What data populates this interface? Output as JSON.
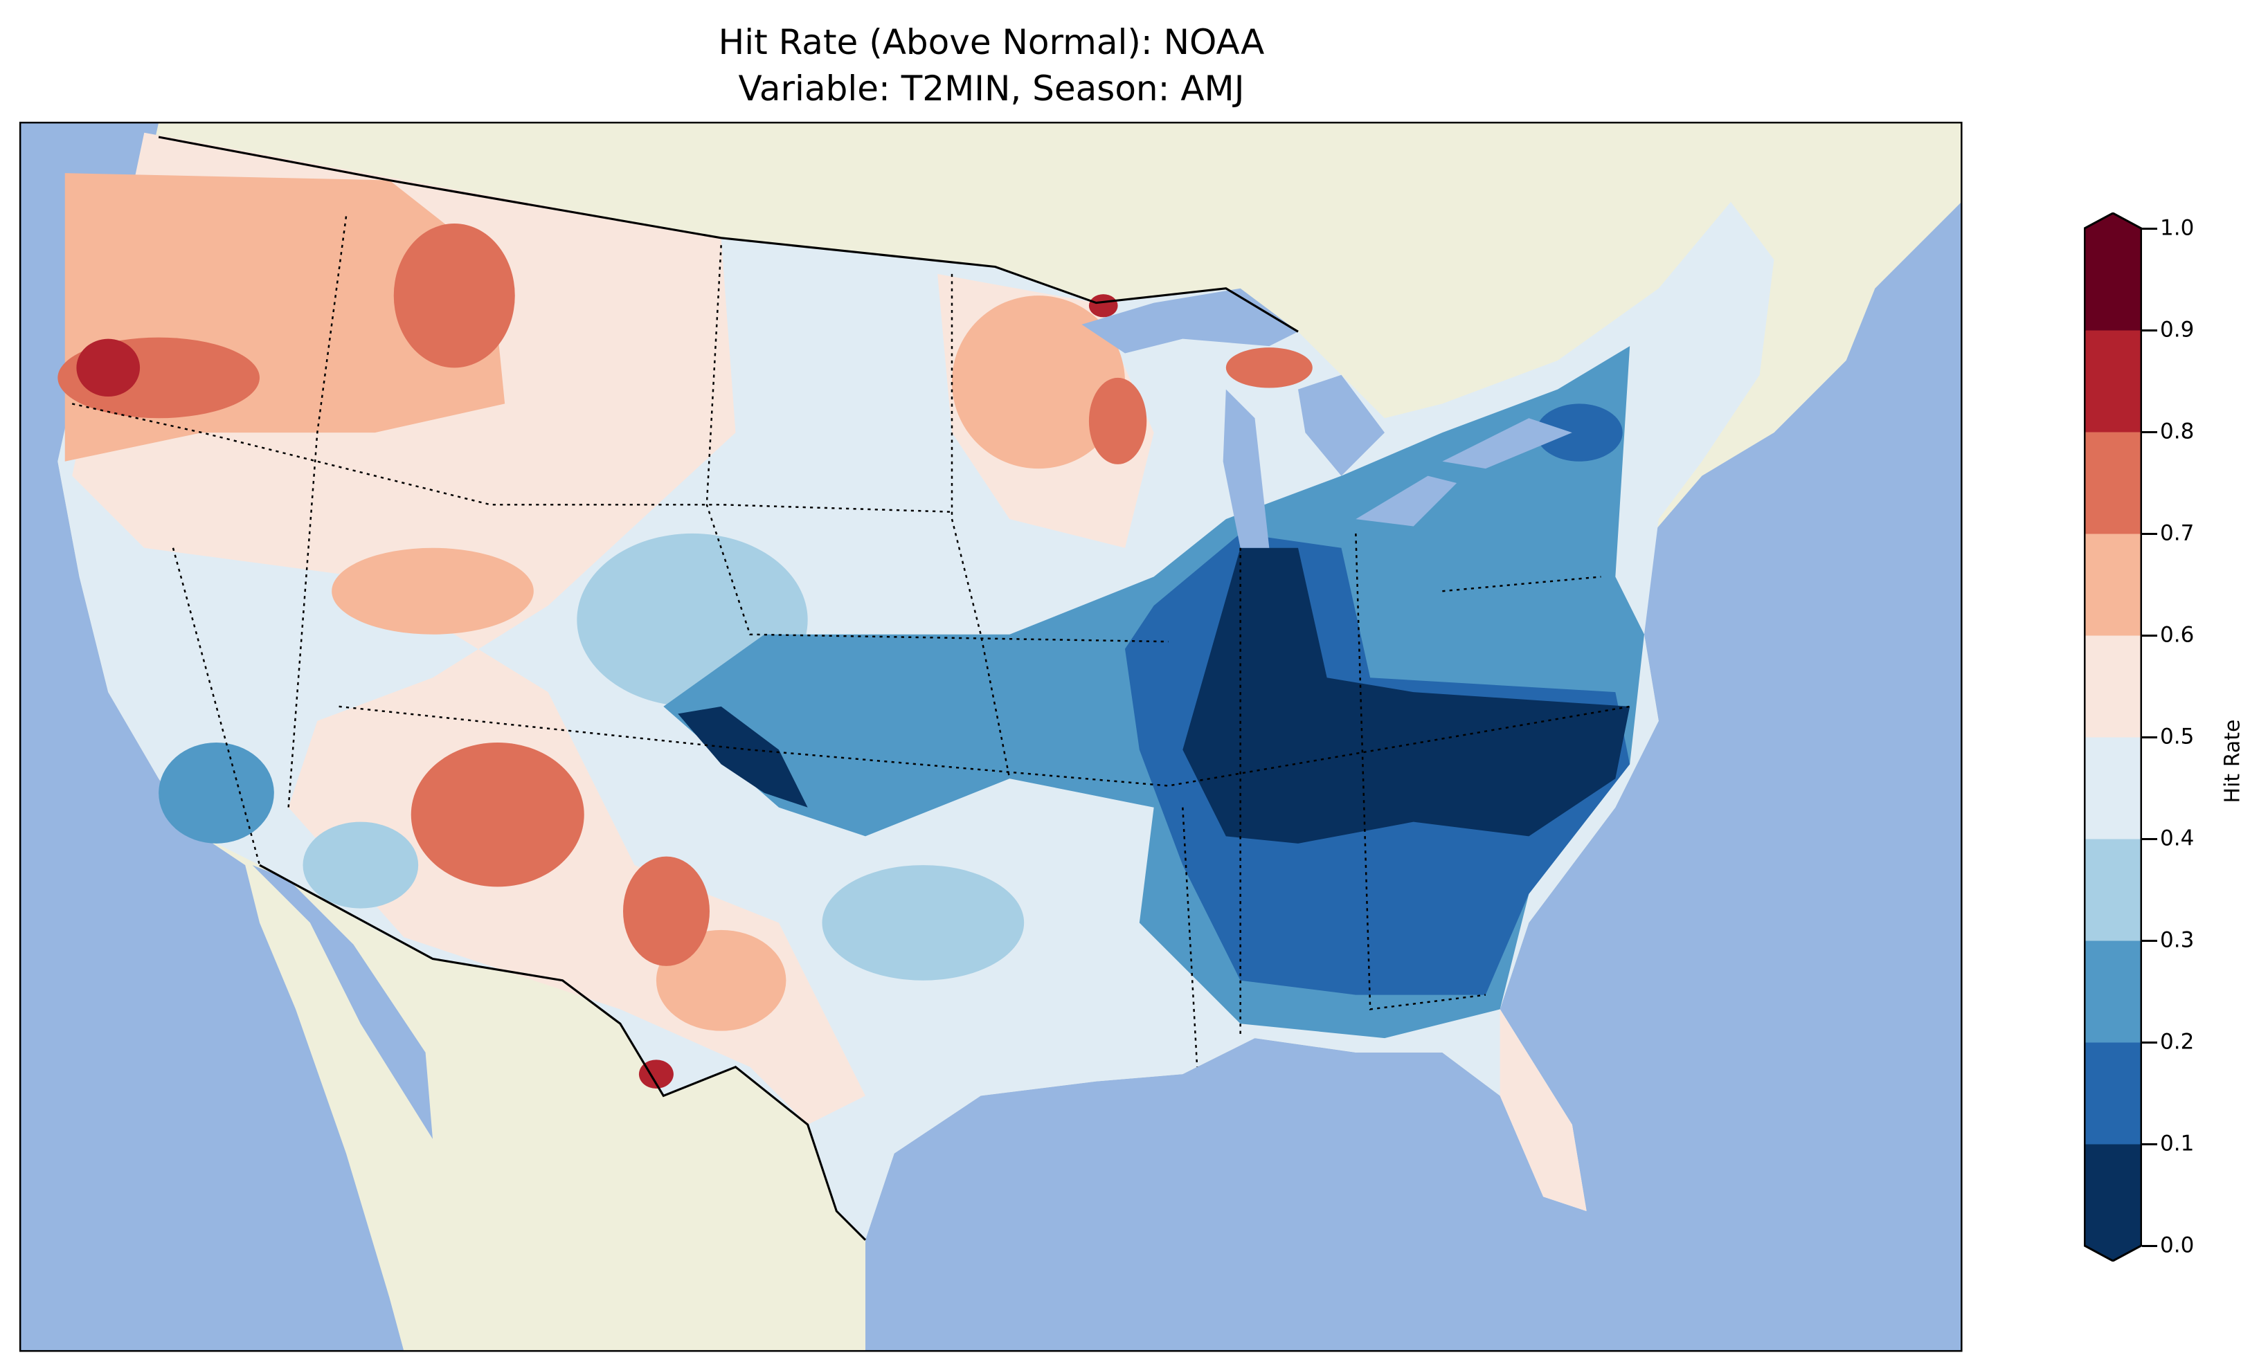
{
  "title": {
    "line1": "Hit Rate (Above Normal): NOAA",
    "line2": "Variable: T2MIN, Season: AMJ"
  },
  "colorbar": {
    "label": "Hit Rate",
    "ticks": [
      "0.0",
      "0.1",
      "0.2",
      "0.3",
      "0.4",
      "0.5",
      "0.6",
      "0.7",
      "0.8",
      "0.9",
      "1.0"
    ],
    "colors": [
      "#08305e",
      "#2567ad",
      "#5199c6",
      "#a7cfe4",
      "#e0ecf4",
      "#f9e6dd",
      "#f6b799",
      "#de7059",
      "#b2222e",
      "#67001f"
    ]
  },
  "map": {
    "ocean_color": "#97b6e1",
    "land_color": "#efefdb"
  }
}
